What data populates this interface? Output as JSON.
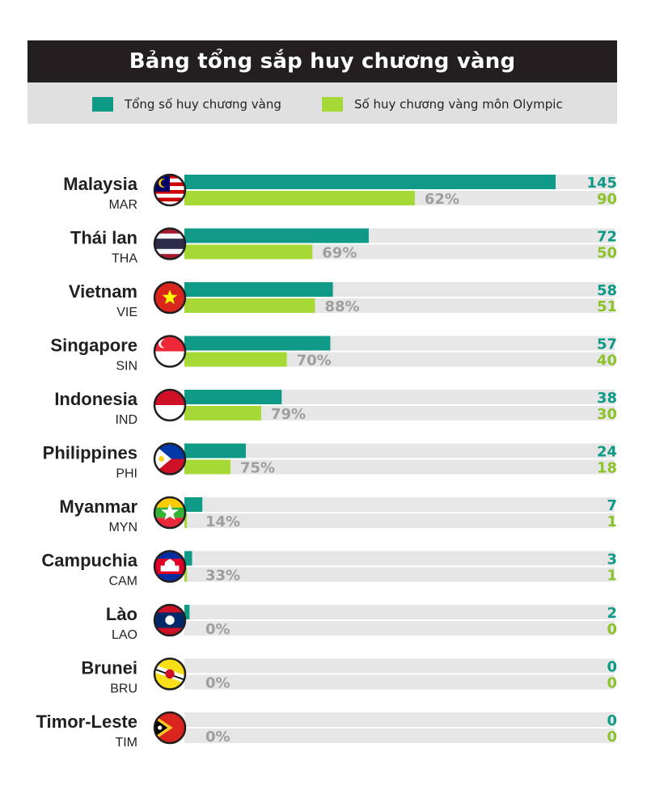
{
  "header": {
    "title": "Bảng tổng sắp huy chương vàng"
  },
  "legend": {
    "total_label": "Tổng số huy chương vàng",
    "olympic_label": "Số huy chương vàng môn Olympic"
  },
  "colors": {
    "total": "#0e9a86",
    "olympic": "#a6d936",
    "track": "#e6e6e6",
    "title_bg": "#231f20",
    "legend_bg": "#e0e0e0",
    "pct_text": "#9e9e9e",
    "total_text": "#0e9a86",
    "olympic_text": "#8cc22a"
  },
  "chart_data": {
    "type": "bar",
    "orientation": "horizontal",
    "title": "Bảng tổng sắp huy chương vàng",
    "xlim": [
      0,
      145
    ],
    "legend_position": "top",
    "series": [
      {
        "name": "Tổng số huy chương vàng",
        "values": [
          145,
          72,
          58,
          57,
          38,
          24,
          7,
          3,
          2,
          0,
          0
        ]
      },
      {
        "name": "Số huy chương vàng môn Olympic",
        "values": [
          90,
          50,
          51,
          40,
          30,
          18,
          1,
          1,
          0,
          0,
          0
        ]
      }
    ],
    "categories": [
      "Malaysia",
      "Thái lan",
      "Vietnam",
      "Singapore",
      "Indonesia",
      "Philippines",
      "Myanmar",
      "Campuchia",
      "Lào",
      "Brunei",
      "Timor-Leste"
    ],
    "codes": [
      "MAR",
      "THA",
      "VIE",
      "SIN",
      "IND",
      "PHI",
      "MYN",
      "CAM",
      "LAO",
      "BRU",
      "TIM"
    ],
    "percent_labels": [
      "62%",
      "69%",
      "88%",
      "70%",
      "79%",
      "75%",
      "14%",
      "33%",
      "0%",
      "0%",
      "0%"
    ],
    "total_labels": [
      "145",
      "72",
      "58",
      "57",
      "38",
      "24",
      "7",
      "3",
      "2",
      "0",
      "0"
    ],
    "olympic_labels": [
      "90",
      "50",
      "51",
      "40",
      "30",
      "18",
      "1",
      "1",
      "0",
      "0",
      "0"
    ],
    "flag_icons": [
      "malaysia-flag-icon",
      "thailand-flag-icon",
      "vietnam-flag-icon",
      "singapore-flag-icon",
      "indonesia-flag-icon",
      "philippines-flag-icon",
      "myanmar-flag-icon",
      "cambodia-flag-icon",
      "laos-flag-icon",
      "brunei-flag-icon",
      "timor-leste-flag-icon"
    ]
  }
}
